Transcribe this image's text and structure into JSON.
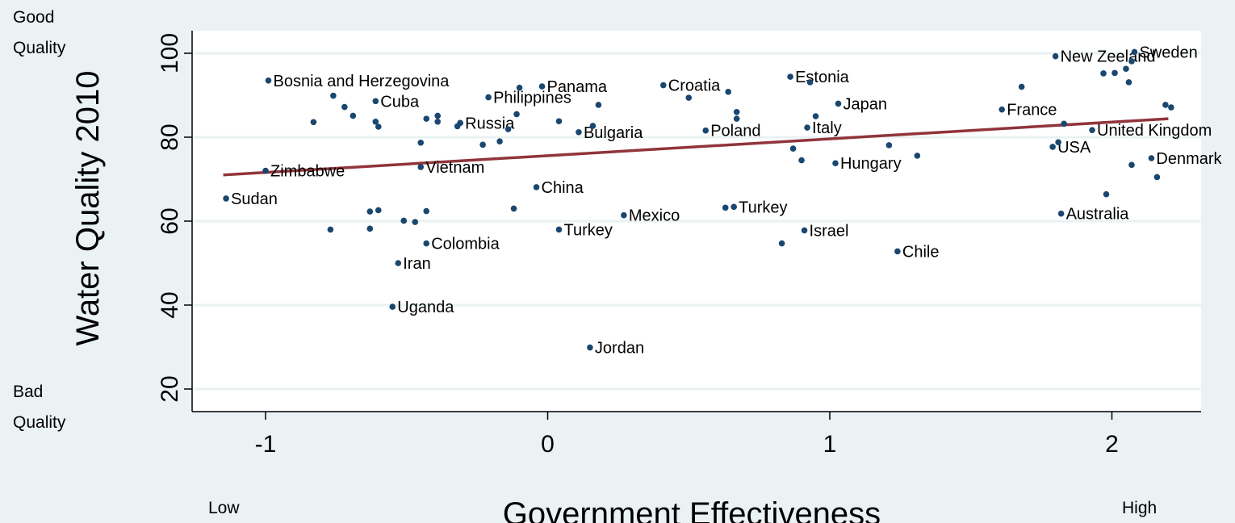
{
  "chart_data": {
    "type": "scatter",
    "xlabel": "Government Effectiveness",
    "ylabel": "Water Quality 2010",
    "xlim": [
      -1.25,
      2.25
    ],
    "ylim": [
      14,
      104
    ],
    "x_ticks": [
      -1,
      0,
      1,
      2
    ],
    "y_ticks": [
      20,
      40,
      60,
      80,
      100
    ],
    "grid": true,
    "corner_labels": {
      "y_top": [
        "Good",
        "Quality"
      ],
      "y_bottom": [
        "Bad",
        "Quality"
      ],
      "x_left": "Low",
      "x_right": "High"
    },
    "colors": {
      "points": "#1a476f",
      "fit_line": "#90353b",
      "background": "#eaf2f3",
      "plot": "#ffffff"
    },
    "fit_line": {
      "x": [
        -1.15,
        2.2
      ],
      "y": [
        71.0,
        84.4
      ]
    },
    "points": [
      {
        "x": -1.14,
        "y": 65.4,
        "label": "Sudan"
      },
      {
        "x": -1.0,
        "y": 72.0,
        "label": "Zimbabwe"
      },
      {
        "x": -0.99,
        "y": 93.5,
        "label": "Bosnia and Herzegovina"
      },
      {
        "x": -0.83,
        "y": 83.6,
        "label": ""
      },
      {
        "x": -0.77,
        "y": 58.0,
        "label": ""
      },
      {
        "x": -0.76,
        "y": 89.9,
        "label": ""
      },
      {
        "x": -0.72,
        "y": 87.2,
        "label": ""
      },
      {
        "x": -0.69,
        "y": 85.1,
        "label": ""
      },
      {
        "x": -0.63,
        "y": 62.3,
        "label": ""
      },
      {
        "x": -0.63,
        "y": 58.2,
        "label": ""
      },
      {
        "x": -0.61,
        "y": 88.6,
        "label": "Cuba"
      },
      {
        "x": -0.61,
        "y": 83.7,
        "label": ""
      },
      {
        "x": -0.6,
        "y": 82.5,
        "label": ""
      },
      {
        "x": -0.6,
        "y": 62.6,
        "label": ""
      },
      {
        "x": -0.55,
        "y": 39.6,
        "label": "Uganda"
      },
      {
        "x": -0.53,
        "y": 50.0,
        "label": "Iran"
      },
      {
        "x": -0.51,
        "y": 60.1,
        "label": ""
      },
      {
        "x": -0.47,
        "y": 59.8,
        "label": ""
      },
      {
        "x": -0.45,
        "y": 78.7,
        "label": ""
      },
      {
        "x": -0.45,
        "y": 72.9,
        "label": "Vietnam"
      },
      {
        "x": -0.43,
        "y": 84.4,
        "label": ""
      },
      {
        "x": -0.43,
        "y": 62.4,
        "label": ""
      },
      {
        "x": -0.43,
        "y": 54.7,
        "label": "Colombia"
      },
      {
        "x": -0.39,
        "y": 85.1,
        "label": ""
      },
      {
        "x": -0.39,
        "y": 83.7,
        "label": ""
      },
      {
        "x": -0.32,
        "y": 82.6,
        "label": ""
      },
      {
        "x": -0.31,
        "y": 83.4,
        "label": "Russia"
      },
      {
        "x": -0.23,
        "y": 78.2,
        "label": ""
      },
      {
        "x": -0.21,
        "y": 89.5,
        "label": "Philippines"
      },
      {
        "x": -0.17,
        "y": 79.0,
        "label": ""
      },
      {
        "x": -0.14,
        "y": 81.9,
        "label": ""
      },
      {
        "x": -0.12,
        "y": 63.0,
        "label": ""
      },
      {
        "x": -0.11,
        "y": 85.5,
        "label": ""
      },
      {
        "x": -0.1,
        "y": 91.8,
        "label": ""
      },
      {
        "x": -0.02,
        "y": 92.1,
        "label": "Panama"
      },
      {
        "x": -0.04,
        "y": 68.1,
        "label": "China"
      },
      {
        "x": 0.04,
        "y": 83.8,
        "label": ""
      },
      {
        "x": 0.04,
        "y": 58.0,
        "label": "Turkey"
      },
      {
        "x": 0.11,
        "y": 81.2,
        "label": "Bulgaria"
      },
      {
        "x": 0.15,
        "y": 29.9,
        "label": "Jordan"
      },
      {
        "x": 0.16,
        "y": 82.7,
        "label": ""
      },
      {
        "x": 0.18,
        "y": 87.7,
        "label": ""
      },
      {
        "x": 0.27,
        "y": 61.4,
        "label": "Mexico"
      },
      {
        "x": 0.41,
        "y": 92.4,
        "label": "Croatia"
      },
      {
        "x": 0.5,
        "y": 89.4,
        "label": ""
      },
      {
        "x": 0.56,
        "y": 81.6,
        "label": "Poland"
      },
      {
        "x": 0.63,
        "y": 63.2,
        "label": ""
      },
      {
        "x": 0.64,
        "y": 90.8,
        "label": ""
      },
      {
        "x": 0.66,
        "y": 63.4,
        "label": "Turkey"
      },
      {
        "x": 0.67,
        "y": 86.0,
        "label": ""
      },
      {
        "x": 0.67,
        "y": 84.4,
        "label": ""
      },
      {
        "x": 0.83,
        "y": 54.7,
        "label": ""
      },
      {
        "x": 0.86,
        "y": 94.4,
        "label": "Estonia"
      },
      {
        "x": 0.87,
        "y": 77.3,
        "label": ""
      },
      {
        "x": 0.9,
        "y": 74.5,
        "label": ""
      },
      {
        "x": 0.91,
        "y": 57.8,
        "label": "Israel"
      },
      {
        "x": 0.92,
        "y": 82.3,
        "label": "Italy"
      },
      {
        "x": 0.93,
        "y": 93.1,
        "label": ""
      },
      {
        "x": 0.95,
        "y": 85.0,
        "label": ""
      },
      {
        "x": 1.02,
        "y": 73.8,
        "label": "Hungary"
      },
      {
        "x": 1.03,
        "y": 88.0,
        "label": "Japan"
      },
      {
        "x": 1.21,
        "y": 78.1,
        "label": ""
      },
      {
        "x": 1.24,
        "y": 52.8,
        "label": "Chile"
      },
      {
        "x": 1.31,
        "y": 75.6,
        "label": ""
      },
      {
        "x": 1.61,
        "y": 86.6,
        "label": "France"
      },
      {
        "x": 1.68,
        "y": 92.0,
        "label": ""
      },
      {
        "x": 1.79,
        "y": 77.7,
        "label": "USA"
      },
      {
        "x": 1.8,
        "y": 99.3,
        "label": "New Zeeland"
      },
      {
        "x": 1.81,
        "y": 78.8,
        "label": ""
      },
      {
        "x": 1.82,
        "y": 61.8,
        "label": "Australia"
      },
      {
        "x": 1.83,
        "y": 83.2,
        "label": ""
      },
      {
        "x": 1.93,
        "y": 81.7,
        "label": "United Kingdom"
      },
      {
        "x": 1.97,
        "y": 95.2,
        "label": ""
      },
      {
        "x": 1.98,
        "y": 66.4,
        "label": ""
      },
      {
        "x": 2.01,
        "y": 95.3,
        "label": ""
      },
      {
        "x": 2.05,
        "y": 96.3,
        "label": ""
      },
      {
        "x": 2.06,
        "y": 93.1,
        "label": ""
      },
      {
        "x": 2.07,
        "y": 98.1,
        "label": ""
      },
      {
        "x": 2.07,
        "y": 73.4,
        "label": ""
      },
      {
        "x": 2.08,
        "y": 100.3,
        "label": "Sweden"
      },
      {
        "x": 2.14,
        "y": 75.0,
        "label": "Denmark"
      },
      {
        "x": 2.16,
        "y": 70.5,
        "label": ""
      },
      {
        "x": 2.19,
        "y": 87.7,
        "label": ""
      },
      {
        "x": 2.21,
        "y": 87.1,
        "label": ""
      }
    ]
  }
}
